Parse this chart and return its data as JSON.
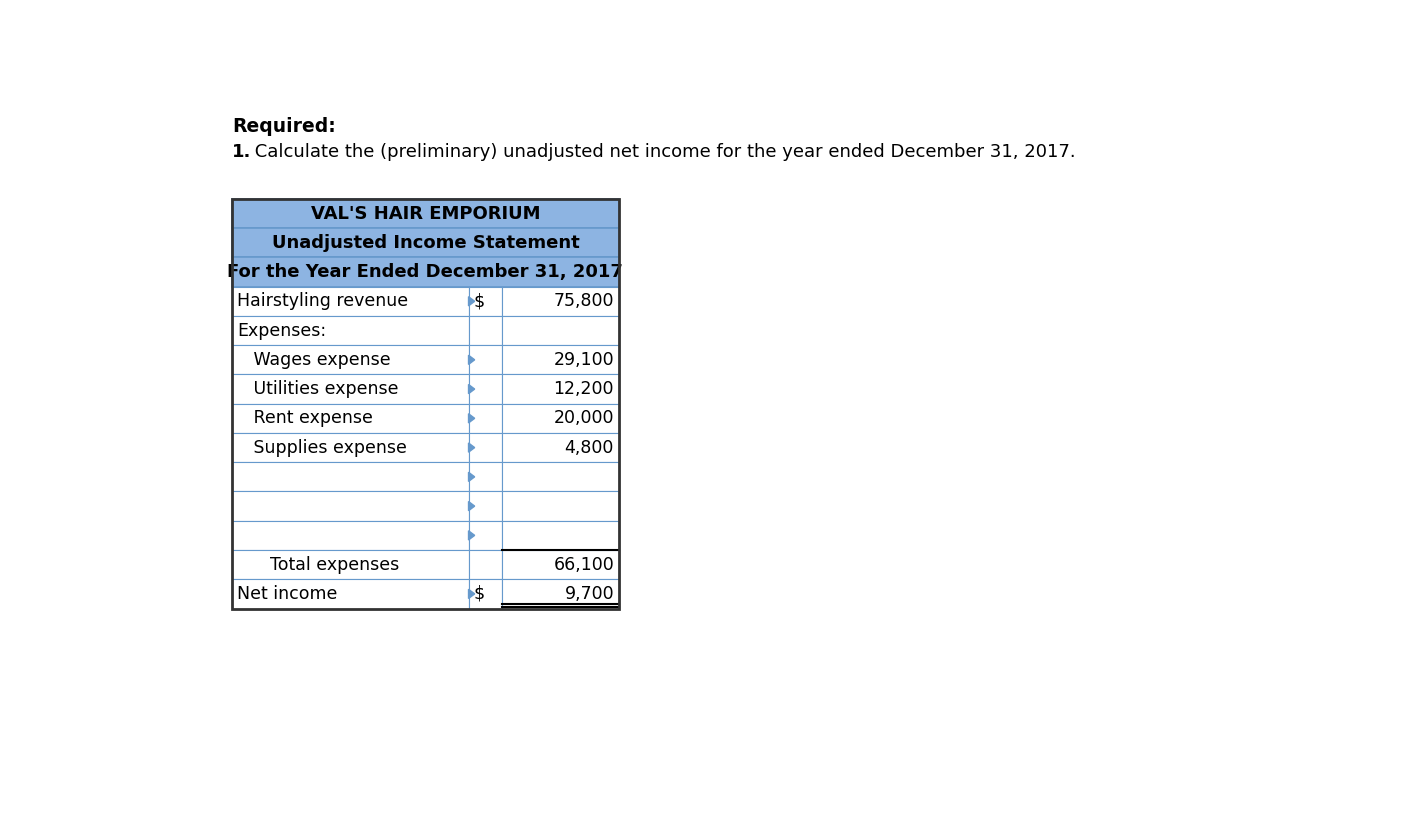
{
  "title1": "VAL'S HAIR EMPORIUM",
  "title2": "Unadjusted Income Statement",
  "title3": "For the Year Ended December 31, 2017",
  "header_bg": "#8DB4E2",
  "header_text_color": "#000000",
  "cell_bg": "#FFFFFF",
  "border_color": "#6699CC",
  "outer_border_color": "#222222",
  "text_color": "#000000",
  "rows": [
    {
      "label": "Hairstyling revenue",
      "col1": "$",
      "col2": "75,800",
      "indent": 0,
      "arrow": true
    },
    {
      "label": "Expenses:",
      "col1": "",
      "col2": "",
      "indent": 0,
      "arrow": false
    },
    {
      "label": "   Wages expense",
      "col1": "",
      "col2": "29,100",
      "indent": 0,
      "arrow": true
    },
    {
      "label": "   Utilities expense",
      "col1": "",
      "col2": "12,200",
      "indent": 0,
      "arrow": true
    },
    {
      "label": "   Rent expense",
      "col1": "",
      "col2": "20,000",
      "indent": 0,
      "arrow": true
    },
    {
      "label": "   Supplies expense",
      "col1": "",
      "col2": "4,800",
      "indent": 0,
      "arrow": true
    },
    {
      "label": "",
      "col1": "",
      "col2": "",
      "indent": 0,
      "arrow": true
    },
    {
      "label": "",
      "col1": "",
      "col2": "",
      "indent": 0,
      "arrow": true
    },
    {
      "label": "",
      "col1": "",
      "col2": "",
      "indent": 0,
      "arrow": true
    },
    {
      "label": "      Total expenses",
      "col1": "",
      "col2": "66,100",
      "indent": 0,
      "arrow": false
    },
    {
      "label": "Net income",
      "col1": "$",
      "col2": "9,700",
      "indent": 0,
      "arrow": true
    }
  ],
  "font_size": 12.5,
  "title_font_size": 13
}
